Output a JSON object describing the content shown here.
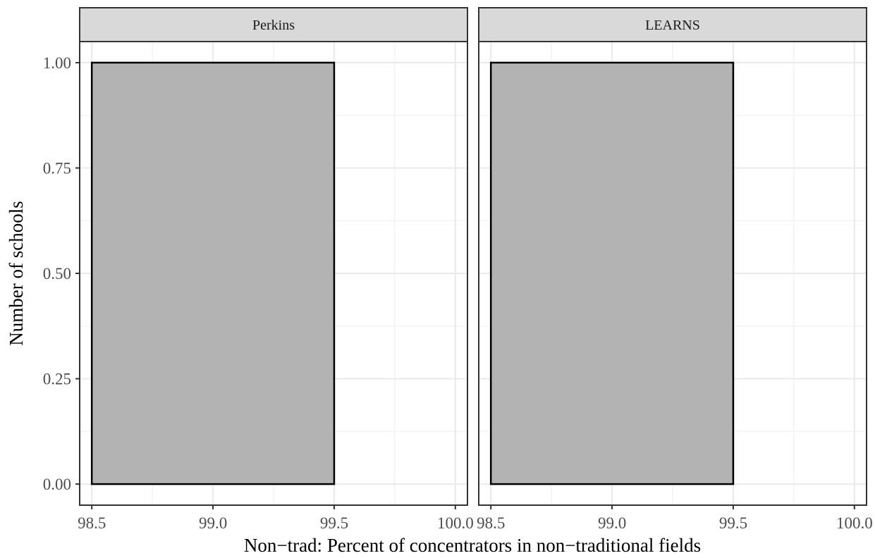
{
  "chart_data": {
    "type": "bar",
    "xlabel": "Non−trad: Percent of concentrators in non−traditional fields",
    "ylabel": "Number of schools",
    "xlim": [
      98.45,
      100.05
    ],
    "ylim": [
      -0.05,
      1.05
    ],
    "x_ticks": [
      98.5,
      99.0,
      99.5,
      100.0
    ],
    "x_tick_labels": [
      "98.5",
      "99.0",
      "99.5",
      "100.0"
    ],
    "y_ticks": [
      0,
      0.25,
      0.5,
      0.75,
      1.0
    ],
    "y_tick_labels": [
      "0.00",
      "0.25",
      "0.50",
      "0.75",
      "1.00"
    ],
    "grid": true,
    "bar_fill": "#b3b3b3",
    "bar_outline": "#000000",
    "strip_fill": "#d9d9d9",
    "panels": [
      {
        "facet": "Perkins",
        "bins": [
          {
            "x0": 98.5,
            "x1": 99.5,
            "count": 1
          }
        ]
      },
      {
        "facet": "LEARNS",
        "bins": [
          {
            "x0": 98.5,
            "x1": 99.5,
            "count": 1
          }
        ]
      }
    ]
  }
}
